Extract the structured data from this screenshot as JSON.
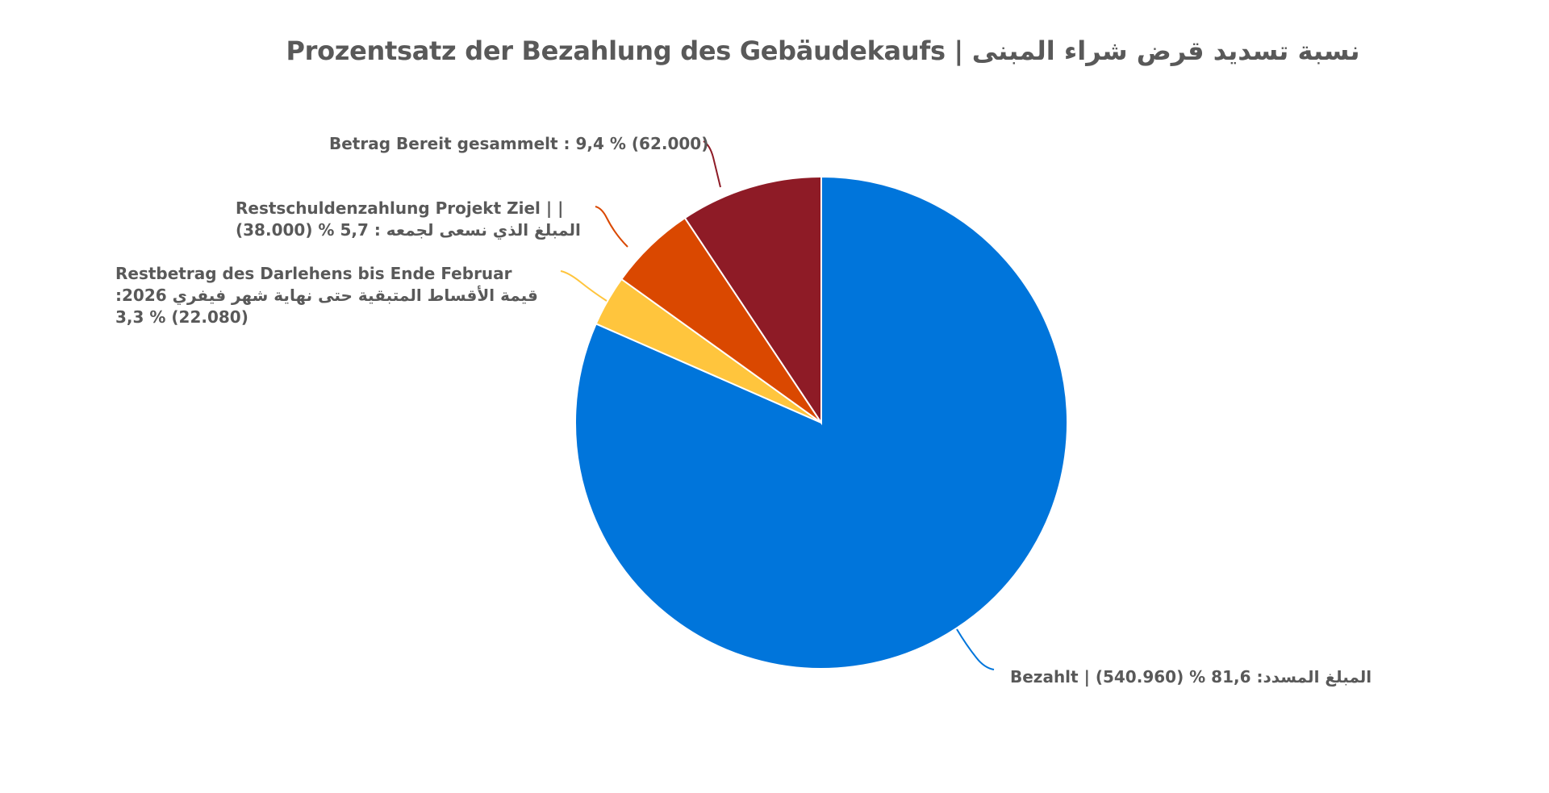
{
  "title": "Prozentsatz der Bezahlung des Gebäudekaufs  |  نسبة تسديد  قرض شراء المبنى",
  "chart_data": {
    "type": "pie",
    "title": "Prozentsatz der Bezahlung des Gebäudekaufs  |  نسبة تسديد  قرض شراء المبنى",
    "start_angle": "12 o'clock, clockwise",
    "legend": "none (data labels with leader lines)",
    "slices": [
      {
        "name": "Bezahlt | المبلغ المسدد",
        "percent": 81.6,
        "value": 540960,
        "color": "#0075DB"
      },
      {
        "name": "Restbetrag des Darlehens bis Ende Februar 2026 | قيمة الأقساط المتبقية حتى نهاية شهر فيفري",
        "percent": 3.3,
        "value": 22080,
        "color": "#FFC53D"
      },
      {
        "name": "Restschuldenzahlung Projekt Ziel | المبلغ الذي نسعى لجمعه",
        "percent": 5.7,
        "value": 38000,
        "color": "#DA4800"
      },
      {
        "name": "Betrag Bereit gesammelt",
        "percent": 9.4,
        "value": 62000,
        "color": "#8E1B26"
      }
    ],
    "categories": [
      "Bezahlt",
      "Restbetrag des Darlehens bis Ende Februar 2026",
      "Restschuldenzahlung Projekt Ziel",
      "Betrag Bereit gesammelt"
    ],
    "values": [
      540960,
      22080,
      38000,
      62000
    ],
    "percent_values": [
      81.6,
      3.3,
      5.7,
      9.4
    ]
  },
  "labels": {
    "collected": {
      "lines": [
        "Betrag Bereit gesammelt : 9,4 % (62.000)"
      ]
    },
    "target": {
      "lines": [
        "Restschuldenzahlung Projekt Ziel | |",
        "المبلغ الذي نسعى لجمعه : 5,7 % (38.000)"
      ]
    },
    "remaining": {
      "lines": [
        "Restbetrag des Darlehens bis Ende Februar",
        "قيمة الأقساط المتبقية حتى نهاية شهر فيفري 2026:",
        "3,3 % (22.080)"
      ]
    },
    "paid": {
      "lines": [
        "Bezahlt | (540.960) % 81,6 :المبلغ المسدد"
      ]
    }
  }
}
